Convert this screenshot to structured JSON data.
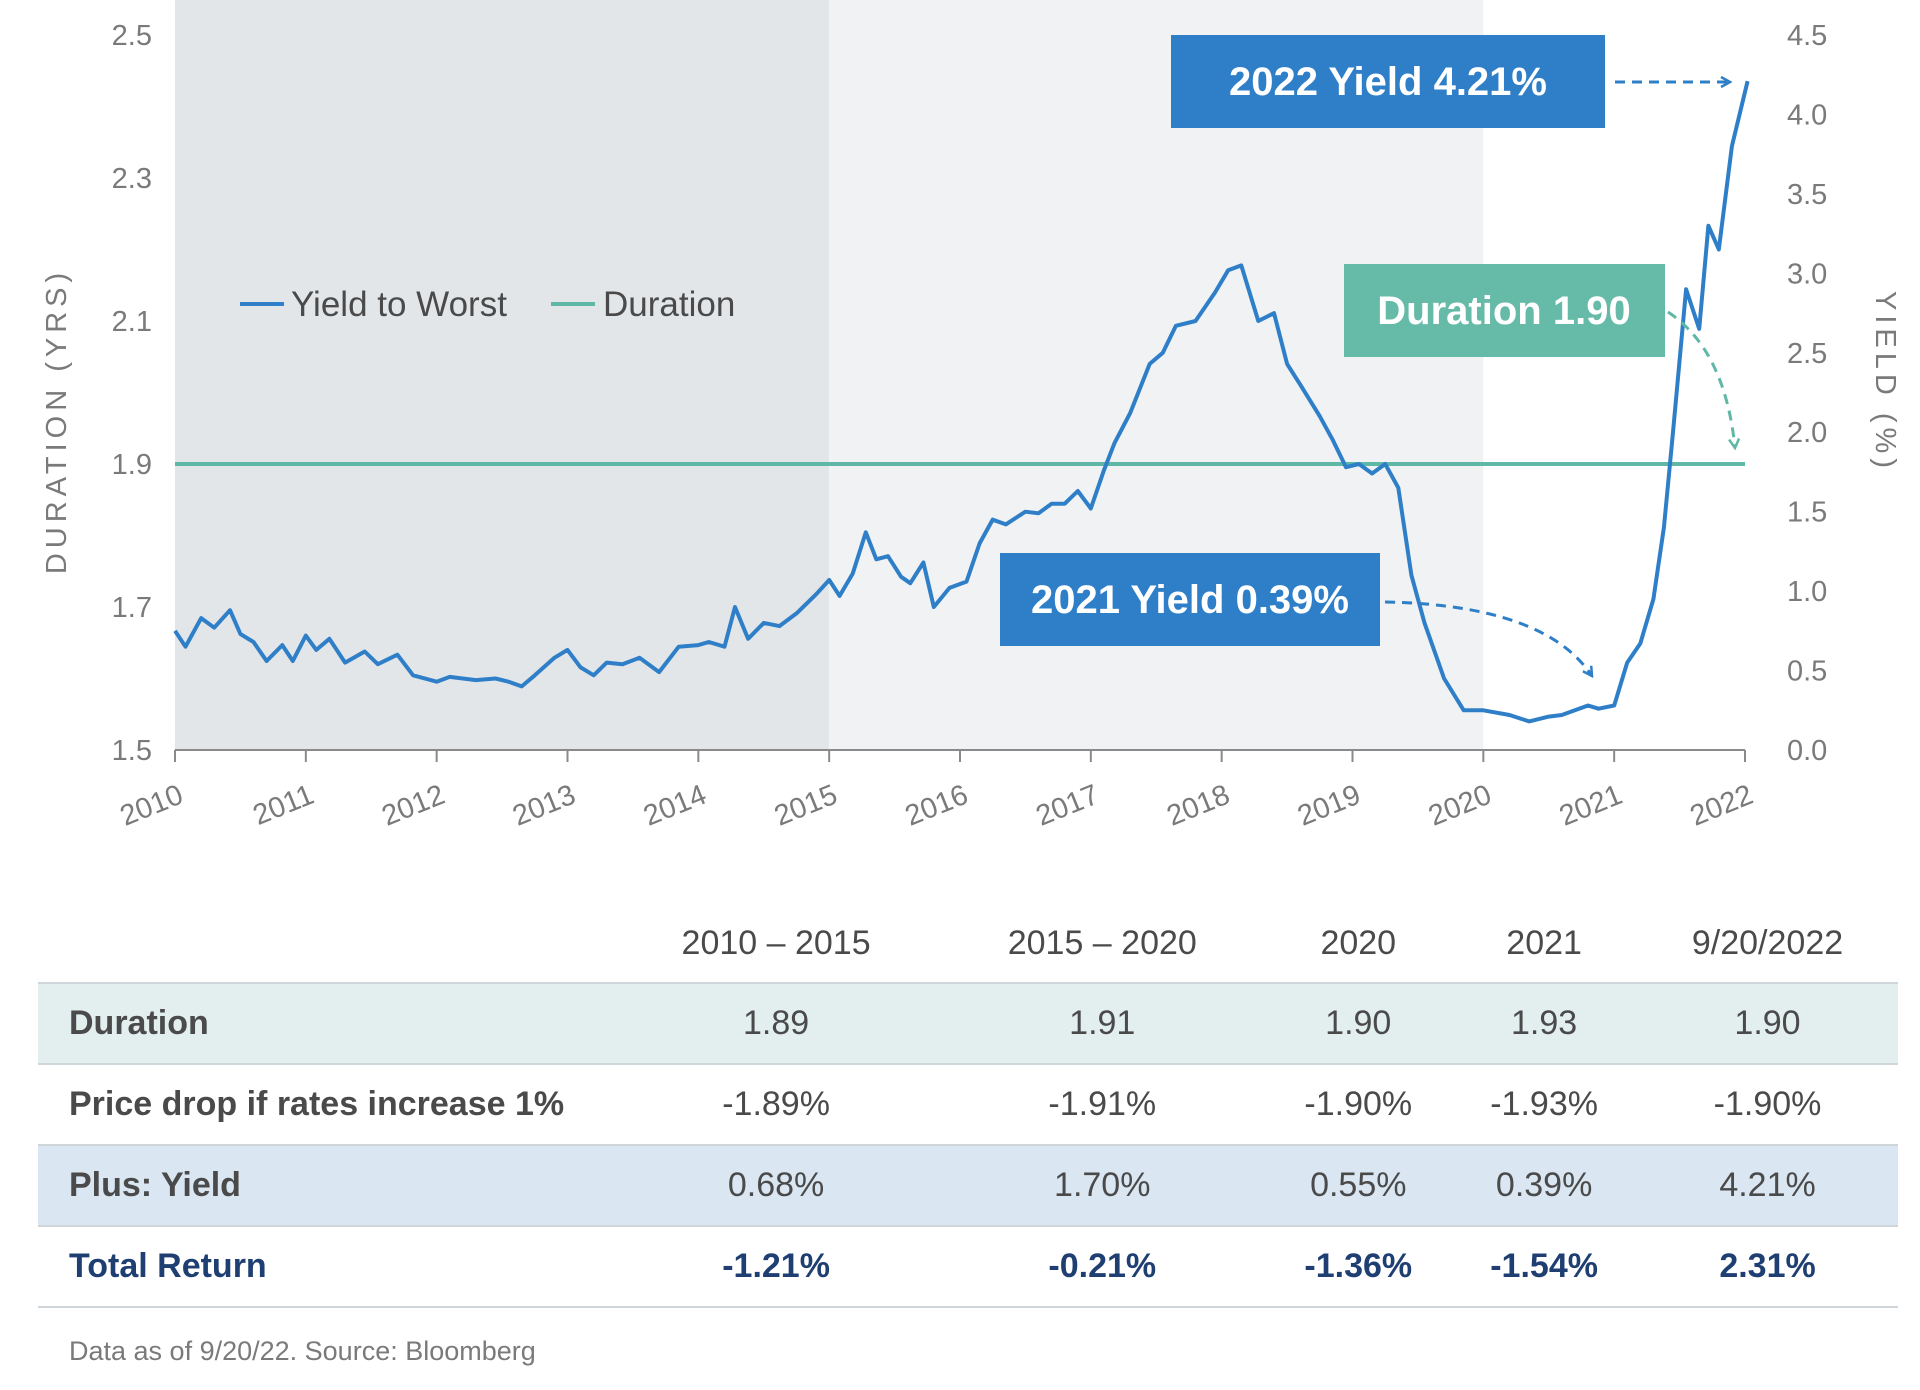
{
  "chart_data": {
    "type": "line",
    "x_labels": [
      "2010",
      "2011",
      "2012",
      "2013",
      "2014",
      "2015",
      "2016",
      "2017",
      "2018",
      "2019",
      "2020",
      "2021",
      "2022"
    ],
    "left_axis": {
      "title": "DURATION (YRS)",
      "ticks": [
        "1.5",
        "1.7",
        "1.9",
        "2.1",
        "2.3",
        "2.5"
      ],
      "range": [
        1.5,
        2.5
      ]
    },
    "right_axis": {
      "title": "YIELD (%)",
      "ticks": [
        "0.0",
        "0.5",
        "1.0",
        "1.5",
        "2.0",
        "2.5",
        "3.0",
        "3.5",
        "4.0",
        "4.5"
      ],
      "range": [
        0,
        4.5
      ]
    },
    "shaded_periods": [
      {
        "from": 2010,
        "to": 2015,
        "color": "#e3e6e9"
      },
      {
        "from": 2015,
        "to": 2020,
        "color": "#f0f2f4"
      }
    ],
    "series": [
      {
        "name": "Yield to Worst",
        "axis": "right",
        "color": "#2e7fc8",
        "points": [
          [
            2010.0,
            0.75
          ],
          [
            2010.08,
            0.65
          ],
          [
            2010.2,
            0.83
          ],
          [
            2010.3,
            0.77
          ],
          [
            2010.42,
            0.88
          ],
          [
            2010.5,
            0.73
          ],
          [
            2010.6,
            0.68
          ],
          [
            2010.7,
            0.56
          ],
          [
            2010.82,
            0.66
          ],
          [
            2010.9,
            0.56
          ],
          [
            2011.0,
            0.72
          ],
          [
            2011.08,
            0.63
          ],
          [
            2011.18,
            0.7
          ],
          [
            2011.3,
            0.55
          ],
          [
            2011.45,
            0.62
          ],
          [
            2011.55,
            0.54
          ],
          [
            2011.7,
            0.6
          ],
          [
            2011.82,
            0.47
          ],
          [
            2012.0,
            0.43
          ],
          [
            2012.1,
            0.46
          ],
          [
            2012.3,
            0.44
          ],
          [
            2012.45,
            0.45
          ],
          [
            2012.55,
            0.43
          ],
          [
            2012.65,
            0.4
          ],
          [
            2012.75,
            0.47
          ],
          [
            2012.9,
            0.58
          ],
          [
            2013.0,
            0.63
          ],
          [
            2013.1,
            0.52
          ],
          [
            2013.2,
            0.47
          ],
          [
            2013.3,
            0.55
          ],
          [
            2013.42,
            0.54
          ],
          [
            2013.55,
            0.58
          ],
          [
            2013.7,
            0.49
          ],
          [
            2013.85,
            0.65
          ],
          [
            2014.0,
            0.66
          ],
          [
            2014.08,
            0.68
          ],
          [
            2014.2,
            0.65
          ],
          [
            2014.28,
            0.9
          ],
          [
            2014.38,
            0.7
          ],
          [
            2014.5,
            0.8
          ],
          [
            2014.62,
            0.78
          ],
          [
            2014.75,
            0.86
          ],
          [
            2014.9,
            0.98
          ],
          [
            2015.0,
            1.07
          ],
          [
            2015.08,
            0.97
          ],
          [
            2015.18,
            1.11
          ],
          [
            2015.28,
            1.37
          ],
          [
            2015.36,
            1.2
          ],
          [
            2015.45,
            1.22
          ],
          [
            2015.55,
            1.09
          ],
          [
            2015.62,
            1.05
          ],
          [
            2015.72,
            1.18
          ],
          [
            2015.8,
            0.9
          ],
          [
            2015.92,
            1.02
          ],
          [
            2016.05,
            1.06
          ],
          [
            2016.15,
            1.3
          ],
          [
            2016.25,
            1.45
          ],
          [
            2016.35,
            1.42
          ],
          [
            2016.5,
            1.5
          ],
          [
            2016.6,
            1.49
          ],
          [
            2016.7,
            1.55
          ],
          [
            2016.8,
            1.55
          ],
          [
            2016.9,
            1.63
          ],
          [
            2017.0,
            1.52
          ],
          [
            2017.1,
            1.76
          ],
          [
            2017.18,
            1.93
          ],
          [
            2017.3,
            2.12
          ],
          [
            2017.45,
            2.43
          ],
          [
            2017.55,
            2.5
          ],
          [
            2017.65,
            2.67
          ],
          [
            2017.8,
            2.7
          ],
          [
            2017.95,
            2.88
          ],
          [
            2018.05,
            3.02
          ],
          [
            2018.15,
            3.05
          ],
          [
            2018.28,
            2.7
          ],
          [
            2018.4,
            2.75
          ],
          [
            2018.5,
            2.43
          ],
          [
            2018.6,
            2.3
          ],
          [
            2018.75,
            2.1
          ],
          [
            2018.85,
            1.95
          ],
          [
            2018.95,
            1.78
          ],
          [
            2019.05,
            1.8
          ],
          [
            2019.15,
            1.74
          ],
          [
            2019.25,
            1.8
          ],
          [
            2019.35,
            1.65
          ],
          [
            2019.45,
            1.1
          ],
          [
            2019.55,
            0.8
          ],
          [
            2019.7,
            0.45
          ],
          [
            2019.85,
            0.25
          ],
          [
            2020.0,
            0.25
          ],
          [
            2020.2,
            0.22
          ],
          [
            2020.35,
            0.18
          ],
          [
            2020.5,
            0.21
          ],
          [
            2020.6,
            0.22
          ],
          [
            2020.7,
            0.25
          ],
          [
            2020.8,
            0.28
          ],
          [
            2020.88,
            0.26
          ],
          [
            2021.0,
            0.28
          ],
          [
            2021.1,
            0.55
          ],
          [
            2021.2,
            0.67
          ],
          [
            2021.3,
            0.95
          ],
          [
            2021.38,
            1.4
          ],
          [
            2021.45,
            2.0
          ],
          [
            2021.55,
            2.9
          ],
          [
            2021.65,
            2.65
          ],
          [
            2021.72,
            3.3
          ],
          [
            2021.8,
            3.15
          ],
          [
            2021.9,
            3.8
          ],
          [
            2022.02,
            4.21
          ]
        ]
      },
      {
        "name": "Duration",
        "axis": "left",
        "color": "#5fb8a6",
        "value": 1.9
      }
    ],
    "callouts": [
      {
        "text": "2022 Yield 4.21%",
        "color": "#2e7fc8"
      },
      {
        "text": "Duration 1.90",
        "color": "#66bba8"
      },
      {
        "text": "2021 Yield 0.39%",
        "color": "#2e7fc8"
      }
    ]
  },
  "table": {
    "columns": [
      "",
      "2010 – 2015",
      "2015 – 2020",
      "2020",
      "2021",
      "9/20/2022"
    ],
    "rows": [
      {
        "label": "Duration",
        "values": [
          "1.89",
          "1.91",
          "1.90",
          "1.93",
          "1.90"
        ]
      },
      {
        "label": "Price drop if rates increase 1%",
        "values": [
          "-1.89%",
          "-1.91%",
          "-1.90%",
          "-1.93%",
          "-1.90%"
        ]
      },
      {
        "label": "Plus: Yield",
        "values": [
          "0.68%",
          "1.70%",
          "0.55%",
          "0.39%",
          "4.21%"
        ]
      },
      {
        "label": "Total Return",
        "values": [
          "-1.21%",
          "-0.21%",
          "-1.36%",
          "-1.54%",
          "2.31%"
        ]
      }
    ]
  },
  "footnote": "Data as of 9/20/22. Source: Bloomberg"
}
